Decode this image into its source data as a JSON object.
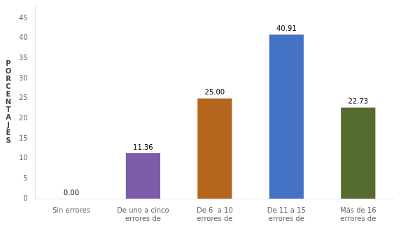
{
  "chart_data": {
    "type": "bar",
    "ylabel": "PORCENTAJES",
    "categories": [
      "Sin errores",
      "De uno a cinco\nerrores de",
      "De 6  a 10\nerrores de",
      "De 11 a 15\nerrores de",
      "Más de 16\nerrores de"
    ],
    "values": [
      0.0,
      11.36,
      25.0,
      40.91,
      22.73
    ],
    "value_labels": [
      "0.00",
      "11.36",
      "25.00",
      "40.91",
      "22.73"
    ],
    "colors": [
      "#4472C4",
      "#7B5EA7",
      "#B5651D",
      "#4472C4",
      "#556B2F"
    ],
    "ylim": [
      0,
      48
    ],
    "yticks": [
      0,
      5,
      10,
      15,
      20,
      25,
      30,
      35,
      40,
      45
    ],
    "grid": false,
    "data_labels": true
  }
}
